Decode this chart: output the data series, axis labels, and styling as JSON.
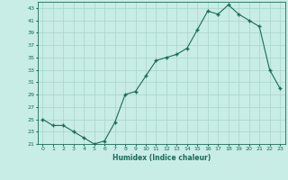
{
  "x": [
    0,
    1,
    2,
    3,
    4,
    5,
    6,
    7,
    8,
    9,
    10,
    11,
    12,
    13,
    14,
    15,
    16,
    17,
    18,
    19,
    20,
    21,
    22,
    23
  ],
  "y": [
    25,
    24,
    24,
    23,
    22,
    21,
    21.5,
    24.5,
    29,
    29.5,
    32,
    34.5,
    35,
    35.5,
    36.5,
    39.5,
    42.5,
    42,
    43.5,
    42,
    41,
    40,
    33,
    30
  ],
  "xlabel": "Humidex (Indice chaleur)",
  "line_color": "#1a6b5a",
  "marker_color": "#1a6b5a",
  "bg_color": "#c8ece6",
  "grid_color": "#a8d4cc",
  "text_color": "#1a6b5a",
  "ylim": [
    21,
    44
  ],
  "yticks": [
    21,
    23,
    25,
    27,
    29,
    31,
    33,
    35,
    37,
    39,
    41,
    43
  ],
  "xlim": [
    -0.5,
    23.5
  ]
}
